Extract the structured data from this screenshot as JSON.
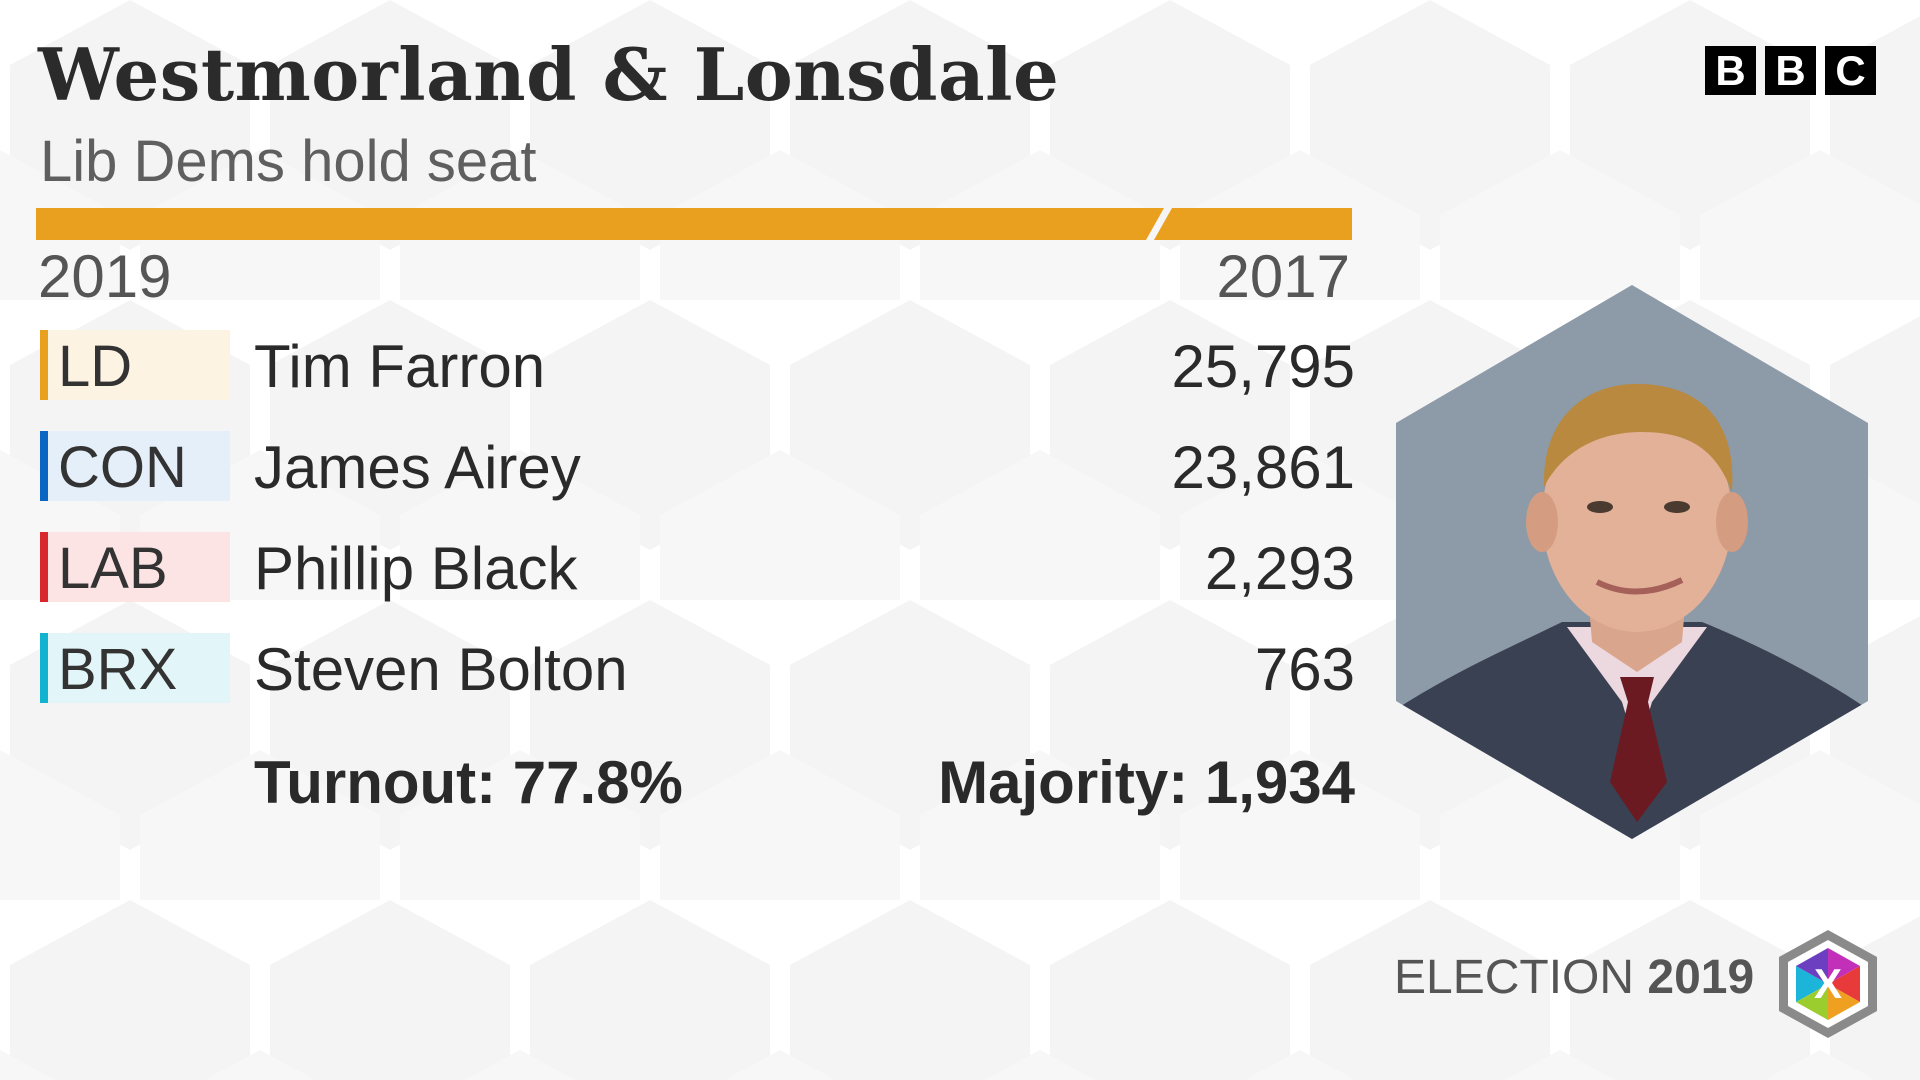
{
  "header": {
    "constituency": "Westmorland & Lonsdale",
    "result_summary": "Lib Dems hold seat"
  },
  "brand": {
    "logo_letters": [
      "B",
      "B",
      "C"
    ]
  },
  "result_bar": {
    "color": "#E8A01E",
    "gap_color": "#ffffff"
  },
  "years": {
    "current": "2019",
    "previous": "2017"
  },
  "candidates": [
    {
      "party": "LD",
      "name": "Tim Farron",
      "votes": "25,795",
      "party_color": "#E8A01E",
      "tag_bg": "#FDF3E3"
    },
    {
      "party": "CON",
      "name": "James Airey",
      "votes": "23,861",
      "party_color": "#0A66C2",
      "tag_bg": "#E4EFFA"
    },
    {
      "party": "LAB",
      "name": "Phillip Black",
      "votes": "2,293",
      "party_color": "#D8282E",
      "tag_bg": "#FCE4E5"
    },
    {
      "party": "BRX",
      "name": "Steven Bolton",
      "votes": "763",
      "party_color": "#12B3D1",
      "tag_bg": "#E2F5F9"
    }
  ],
  "stats": {
    "turnout": "Turnout: 77.8%",
    "majority": "Majority: 1,934"
  },
  "footer": {
    "election_word": "ELECTION",
    "election_year": "2019",
    "logo_mark": "X"
  }
}
